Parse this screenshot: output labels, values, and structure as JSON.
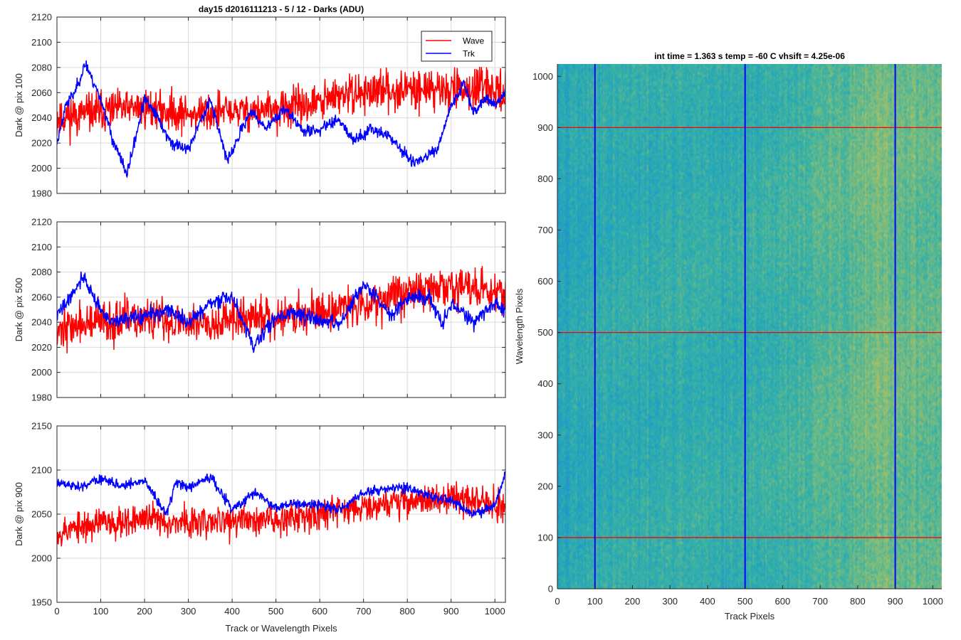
{
  "figure_title": "day15 d2016111213 - 5 / 12 - Darks (ADU)",
  "colors": {
    "wave": "#ff0000",
    "trk": "#0000ff",
    "grid": "#d9d9d9",
    "axis": "#262626"
  },
  "chart_data": [
    {
      "type": "line",
      "title": "day15 d2016111213 - 5 / 12 - Darks (ADU)",
      "xlabel": "",
      "ylabel": "Dark @ pix 100",
      "xlim": [
        0,
        1024
      ],
      "ylim": [
        1980,
        2120
      ],
      "xticks": [
        0,
        100,
        200,
        300,
        400,
        500,
        600,
        700,
        800,
        900,
        1000
      ],
      "yticks": [
        1980,
        2000,
        2020,
        2040,
        2060,
        2080,
        2100,
        2120
      ],
      "grid": true,
      "legend": {
        "placement": "top-right",
        "entries": [
          "Wave",
          "Trk"
        ]
      },
      "series": [
        {
          "name": "Wave",
          "color": "#ff0000",
          "noise": 13,
          "seed": 11,
          "x": [
            0,
            100,
            200,
            300,
            400,
            500,
            600,
            650,
            700,
            800,
            900,
            1000,
            1024
          ],
          "y": [
            2040,
            2045,
            2048,
            2043,
            2045,
            2046,
            2052,
            2058,
            2060,
            2063,
            2063,
            2062,
            2060
          ]
        },
        {
          "name": "Trk",
          "color": "#0000ff",
          "noise": 4,
          "seed": 23,
          "x": [
            0,
            20,
            40,
            65,
            100,
            130,
            160,
            200,
            230,
            260,
            300,
            350,
            390,
            440,
            480,
            520,
            560,
            600,
            640,
            680,
            720,
            760,
            790,
            810,
            840,
            870,
            900,
            930,
            950,
            980,
            1000,
            1024
          ],
          "y": [
            2020,
            2050,
            2060,
            2083,
            2055,
            2020,
            1995,
            2055,
            2040,
            2020,
            2015,
            2055,
            2005,
            2045,
            2032,
            2048,
            2030,
            2030,
            2040,
            2022,
            2032,
            2025,
            2013,
            2005,
            2008,
            2015,
            2050,
            2068,
            2045,
            2056,
            2050,
            2060
          ]
        }
      ]
    },
    {
      "type": "line",
      "title": "",
      "xlabel": "",
      "ylabel": "Dark @ pix 500",
      "xlim": [
        0,
        1024
      ],
      "ylim": [
        1980,
        2120
      ],
      "xticks": [
        0,
        100,
        200,
        300,
        400,
        500,
        600,
        700,
        800,
        900,
        1000
      ],
      "yticks": [
        1980,
        2000,
        2020,
        2040,
        2060,
        2080,
        2100,
        2120
      ],
      "grid": true,
      "series": [
        {
          "name": "Wave",
          "color": "#ff0000",
          "noise": 14,
          "seed": 37,
          "x": [
            0,
            100,
            200,
            300,
            400,
            500,
            600,
            700,
            800,
            900,
            1000,
            1024
          ],
          "y": [
            2035,
            2040,
            2042,
            2040,
            2042,
            2045,
            2048,
            2055,
            2065,
            2068,
            2066,
            2065
          ]
        },
        {
          "name": "Trk",
          "color": "#0000ff",
          "noise": 5,
          "seed": 41,
          "x": [
            0,
            30,
            60,
            80,
            120,
            200,
            250,
            300,
            350,
            400,
            450,
            500,
            550,
            600,
            650,
            700,
            730,
            760,
            800,
            850,
            880,
            900,
            950,
            1000,
            1024
          ],
          "y": [
            2045,
            2060,
            2077,
            2062,
            2040,
            2045,
            2050,
            2040,
            2055,
            2060,
            2020,
            2045,
            2048,
            2040,
            2040,
            2070,
            2060,
            2045,
            2060,
            2060,
            2038,
            2055,
            2040,
            2055,
            2050
          ]
        }
      ]
    },
    {
      "type": "line",
      "title": "",
      "xlabel": "Track or Wavelength Pixels",
      "ylabel": "Dark @ pix 900",
      "xlim": [
        0,
        1024
      ],
      "ylim": [
        1950,
        2150
      ],
      "xticks": [
        0,
        100,
        200,
        300,
        400,
        500,
        600,
        700,
        800,
        900,
        1000
      ],
      "yticks": [
        1950,
        2000,
        2050,
        2100,
        2150
      ],
      "grid": true,
      "series": [
        {
          "name": "Wave",
          "color": "#ff0000",
          "noise": 15,
          "seed": 53,
          "x": [
            0,
            100,
            200,
            300,
            400,
            500,
            600,
            700,
            800,
            900,
            1000,
            1024
          ],
          "y": [
            2030,
            2040,
            2045,
            2040,
            2042,
            2045,
            2052,
            2060,
            2065,
            2068,
            2062,
            2060
          ]
        },
        {
          "name": "Trk",
          "color": "#0000ff",
          "noise": 5,
          "seed": 61,
          "x": [
            0,
            50,
            100,
            150,
            200,
            250,
            270,
            300,
            350,
            400,
            450,
            500,
            550,
            600,
            650,
            700,
            750,
            800,
            850,
            900,
            950,
            1000,
            1024
          ],
          "y": [
            2085,
            2080,
            2090,
            2082,
            2088,
            2050,
            2085,
            2080,
            2092,
            2055,
            2075,
            2058,
            2062,
            2060,
            2055,
            2075,
            2078,
            2080,
            2070,
            2065,
            2050,
            2060,
            2095
          ]
        }
      ]
    },
    {
      "type": "heatmap",
      "title": "int time = 1.363 s   temp = -60 C   vhsift = 4.25e-06",
      "xlabel": "Track Pixels",
      "ylabel": "Wavelength Pixels",
      "xlim": [
        0,
        1024
      ],
      "ylim": [
        0,
        1024
      ],
      "xticks": [
        0,
        100,
        200,
        300,
        400,
        500,
        600,
        700,
        800,
        900,
        1000
      ],
      "yticks": [
        0,
        100,
        200,
        300,
        400,
        500,
        600,
        700,
        800,
        900,
        1000
      ],
      "colormap": [
        "#2a8ad4",
        "#1fa2c0",
        "#3cb3a2",
        "#82bd7a",
        "#c2c05a"
      ],
      "trend": {
        "x": [
          0,
          300,
          500,
          700,
          850,
          1024
        ],
        "level": [
          0.35,
          0.4,
          0.42,
          0.55,
          0.68,
          0.62
        ]
      },
      "markers": {
        "vertical": {
          "color": "#0000ff",
          "x": [
            100,
            500,
            900
          ]
        },
        "horizontal": {
          "color": "#ff0000",
          "y": [
            100,
            500,
            900
          ]
        }
      }
    }
  ]
}
